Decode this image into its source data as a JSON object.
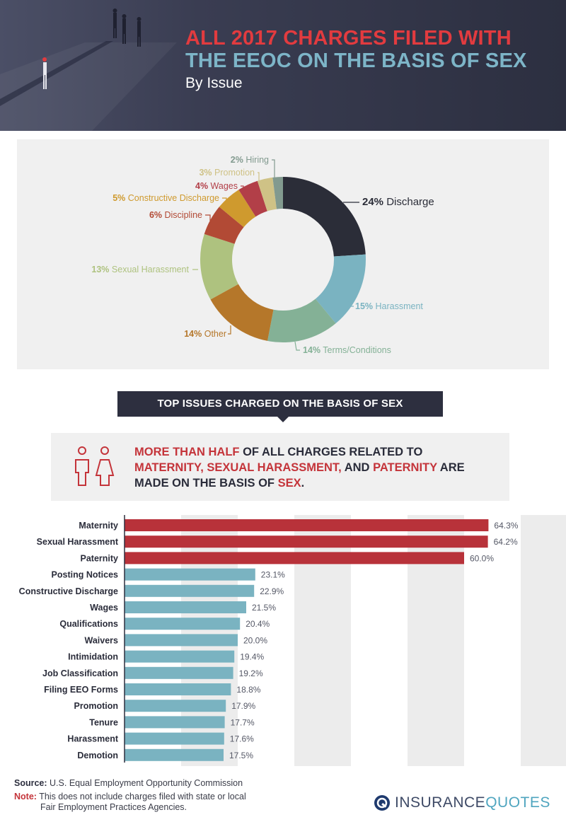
{
  "header": {
    "title_line1": "ALL 2017 CHARGES FILED WITH",
    "title_line2": "THE EEOC ON THE BASIS OF SEX",
    "subtitle": "By Issue"
  },
  "banner": {
    "text": "TOP ISSUES CHARGED ON THE BASIS OF SEX"
  },
  "highlight": {
    "p1": "MORE THAN HALF",
    "p2": " OF ALL CHARGES RELATED TO",
    "p3": "MATERNITY, SEXUAL HARASSMENT,",
    "p4": " AND ",
    "p5": "PATERNITY",
    "p6": " ARE",
    "p7": "MADE ON THE BASIS OF ",
    "p8": "SEX",
    "p9": "."
  },
  "footer": {
    "source_label": "Source:",
    "source_text": "U.S. Equal Employment Opportunity Commission",
    "note_label": "Note:",
    "note_line1": "This does not include charges filed with state or local",
    "note_line2": "Fair Employment Practices Agencies.",
    "brand_part1": "INSURANCE",
    "brand_part2": "QUOTES"
  },
  "colors": {
    "red": "#b8323a",
    "teal": "#7ab3c1",
    "navy": "#2d2f3f"
  },
  "chart_data": [
    {
      "type": "pie",
      "categories": [
        "Discharge",
        "Harassment",
        "Terms/Conditions",
        "Other",
        "Sexual Harassment",
        "Discipline",
        "Constructive Discharge",
        "Wages",
        "Promotion",
        "Hiring"
      ],
      "values": [
        24,
        15,
        14,
        14,
        13,
        6,
        5,
        4,
        3,
        2
      ],
      "labels": [
        "24%",
        "15%",
        "14%",
        "14%",
        "13%",
        "6%",
        "5%",
        "4%",
        "3%",
        "2%"
      ],
      "colors": [
        "#2b2d38",
        "#7ab3c1",
        "#84b196",
        "#b5772a",
        "#aec27f",
        "#b24a35",
        "#cf9a2e",
        "#b23f48",
        "#cfc286",
        "#829a8f"
      ]
    },
    {
      "type": "bar",
      "orientation": "horizontal",
      "categories": [
        "Maternity",
        "Sexual Harassment",
        "Paternity",
        "Posting Notices",
        "Constructive Discharge",
        "Wages",
        "Qualifications",
        "Waivers",
        "Intimidation",
        "Job Classification",
        "Filing EEO Forms",
        "Promotion",
        "Tenure",
        "Harassment",
        "Demotion"
      ],
      "values": [
        64.3,
        64.2,
        60.0,
        23.1,
        22.9,
        21.5,
        20.4,
        20.0,
        19.4,
        19.2,
        18.8,
        17.9,
        17.7,
        17.6,
        17.5
      ],
      "labels": [
        "64.3%",
        "64.2%",
        "60.0%",
        "23.1%",
        "22.9%",
        "21.5%",
        "20.4%",
        "20.0%",
        "19.4%",
        "19.2%",
        "18.8%",
        "17.9%",
        "17.7%",
        "17.6%",
        "17.5%"
      ],
      "highlighted": [
        true,
        true,
        true,
        false,
        false,
        false,
        false,
        false,
        false,
        false,
        false,
        false,
        false,
        false,
        false
      ],
      "xlim": [
        0,
        100
      ],
      "grid": true
    }
  ]
}
